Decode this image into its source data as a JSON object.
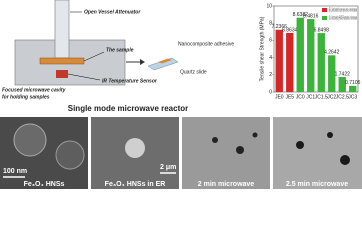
{
  "diagram": {
    "labels": {
      "attenuator": "Open Vessel Attenuator",
      "sample": "The sample",
      "cavity": [
        "Focused microwave cavity",
        "for holding samples"
      ],
      "sensor": "IR Temperature Sensor",
      "adhesive": "Nanocomposite adhesive",
      "slide": "Quartz slide"
    },
    "caption": "Single mode microwave reactor"
  },
  "chart_data": {
    "type": "bar",
    "y_label": "Tensile shear Strength (MPa)",
    "categories": [
      "JE0",
      "JE5",
      "JC0",
      "JC1",
      "JC1.5",
      "JC2",
      "JC2.5",
      "JC3"
    ],
    "values": [
      7.2366,
      6.8634,
      8.6382,
      8.4816,
      6.8498,
      4.2642,
      1.7422,
      0.7105
    ],
    "colors": [
      "#d62728",
      "#d62728",
      "#3cb43c",
      "#3cb43c",
      "#3cb43c",
      "#3cb43c",
      "#3cb43c",
      "#3cb43c"
    ],
    "legend": [
      {
        "name": "JEx, Joints bonded by pure epoxy resin, x min microwave",
        "color": "#d62728"
      },
      {
        "name": "JCx, Joints bonded by Fe3O4-ER composites, x min microwave",
        "color": "#3cb43c"
      }
    ],
    "ylim": [
      0,
      10
    ],
    "yticks": [
      0,
      2,
      4,
      6,
      8,
      10
    ]
  },
  "images": {
    "labels": [
      "Fe₃O₄ HNSs",
      "Fe₃O₄ HNSs in ER",
      "2 min microwave",
      "2.5 min microwave"
    ],
    "scale_bars": [
      "100 nm",
      "2 μm"
    ]
  }
}
